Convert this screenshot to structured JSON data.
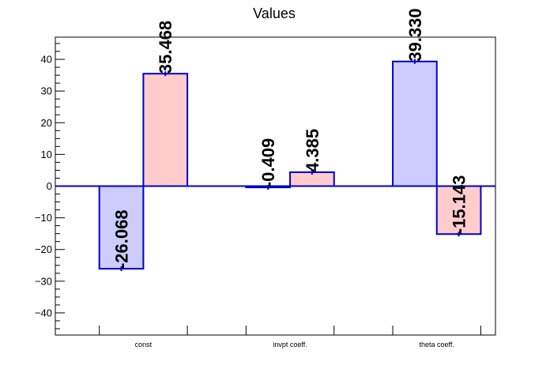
{
  "chart_data": {
    "type": "bar",
    "title": "Values",
    "categories": [
      "const",
      "invpt coeff.",
      "theta coeff."
    ],
    "series": [
      {
        "values": [
          -26.068,
          -0.409,
          39.33
        ],
        "labels": [
          "-26.068",
          "-0.409",
          "39.330"
        ],
        "color": "#ccccff"
      },
      {
        "values": [
          35.468,
          4.385,
          -15.143
        ],
        "labels": [
          "35.468",
          "4.385",
          "-15.143"
        ],
        "color": "#ffcccc"
      }
    ],
    "bar_edge_color": "#0000cc",
    "ylim": [
      -47,
      47
    ],
    "yticks": [
      -40,
      -30,
      -20,
      -10,
      0,
      10,
      20,
      30,
      40
    ],
    "ytick_labels": [
      "−40",
      "−30",
      "−20",
      "−10",
      "0",
      "10",
      "20",
      "30",
      "40"
    ],
    "grid": false,
    "legend": "none"
  }
}
